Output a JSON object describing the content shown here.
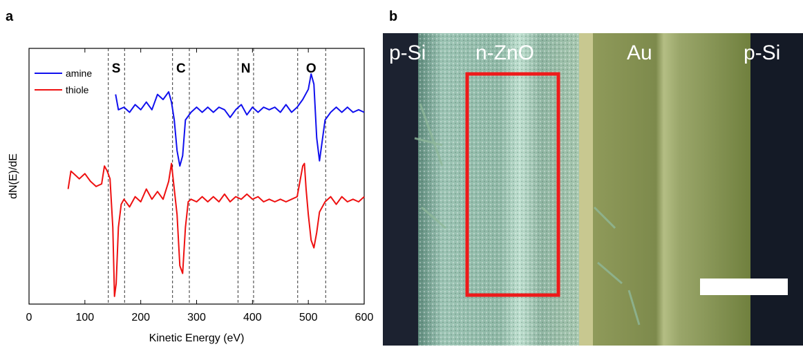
{
  "panels": [
    "a",
    "b"
  ],
  "chart_data": {
    "type": "line",
    "xlabel": "Kinetic Energy (eV)",
    "ylabel": "dN(E)/dE",
    "xlim": [
      0,
      600
    ],
    "xticks": [
      0,
      100,
      200,
      300,
      400,
      500,
      600
    ],
    "ylim": [
      0,
      100
    ],
    "legend": "upper left",
    "reference_lines": [
      142,
      171,
      257,
      287,
      374,
      402,
      481,
      531
    ],
    "annotations": [
      {
        "text": "S",
        "x": 156
      },
      {
        "text": "C",
        "x": 272
      },
      {
        "text": "N",
        "x": 388
      },
      {
        "text": "O",
        "x": 505
      }
    ],
    "series": [
      {
        "name": "amine",
        "color": "#1010ee",
        "x": [
          155,
          160,
          170,
          180,
          190,
          200,
          210,
          220,
          230,
          240,
          250,
          255,
          260,
          265,
          270,
          275,
          280,
          290,
          300,
          310,
          320,
          330,
          340,
          350,
          360,
          370,
          380,
          390,
          400,
          410,
          420,
          430,
          440,
          450,
          460,
          470,
          480,
          490,
          500,
          505,
          510,
          515,
          520,
          525,
          530,
          540,
          550,
          560,
          570,
          580,
          590,
          600
        ],
        "values": [
          82,
          76,
          77,
          75,
          78,
          76,
          79,
          76,
          82,
          80,
          83,
          79,
          72,
          60,
          54,
          58,
          72,
          75,
          77,
          75,
          77,
          75,
          77,
          76,
          73,
          76,
          78,
          74,
          77,
          75,
          77,
          76,
          77,
          75,
          78,
          75,
          77,
          80,
          84,
          90,
          86,
          65,
          56,
          64,
          72,
          75,
          77,
          75,
          77,
          75,
          76,
          75
        ]
      },
      {
        "name": "thiole",
        "color": "#ee1010",
        "x": [
          70,
          75,
          80,
          90,
          100,
          110,
          120,
          130,
          135,
          140,
          145,
          150,
          153,
          156,
          160,
          165,
          170,
          180,
          190,
          200,
          210,
          220,
          230,
          240,
          250,
          255,
          260,
          265,
          270,
          275,
          280,
          285,
          290,
          300,
          310,
          320,
          330,
          340,
          350,
          360,
          370,
          380,
          390,
          400,
          410,
          420,
          430,
          440,
          450,
          460,
          470,
          480,
          485,
          490,
          493,
          496,
          500,
          505,
          510,
          515,
          520,
          530,
          540,
          550,
          560,
          570,
          580,
          590,
          600
        ],
        "values": [
          45,
          52,
          51,
          49,
          51,
          48,
          46,
          47,
          54,
          52,
          49,
          30,
          3,
          8,
          30,
          39,
          41,
          38,
          42,
          40,
          45,
          41,
          44,
          41,
          48,
          55,
          45,
          35,
          15,
          12,
          30,
          40,
          41,
          40,
          42,
          40,
          42,
          40,
          43,
          40,
          42,
          41,
          43,
          41,
          42,
          40,
          41,
          40,
          41,
          40,
          41,
          42,
          48,
          54,
          55,
          45,
          35,
          25,
          22,
          28,
          36,
          40,
          42,
          39,
          42,
          40,
          41,
          40,
          42
        ]
      }
    ]
  },
  "image": {
    "labels": [
      "p-Si",
      "n-ZnO",
      "Au",
      "p-Si"
    ]
  }
}
